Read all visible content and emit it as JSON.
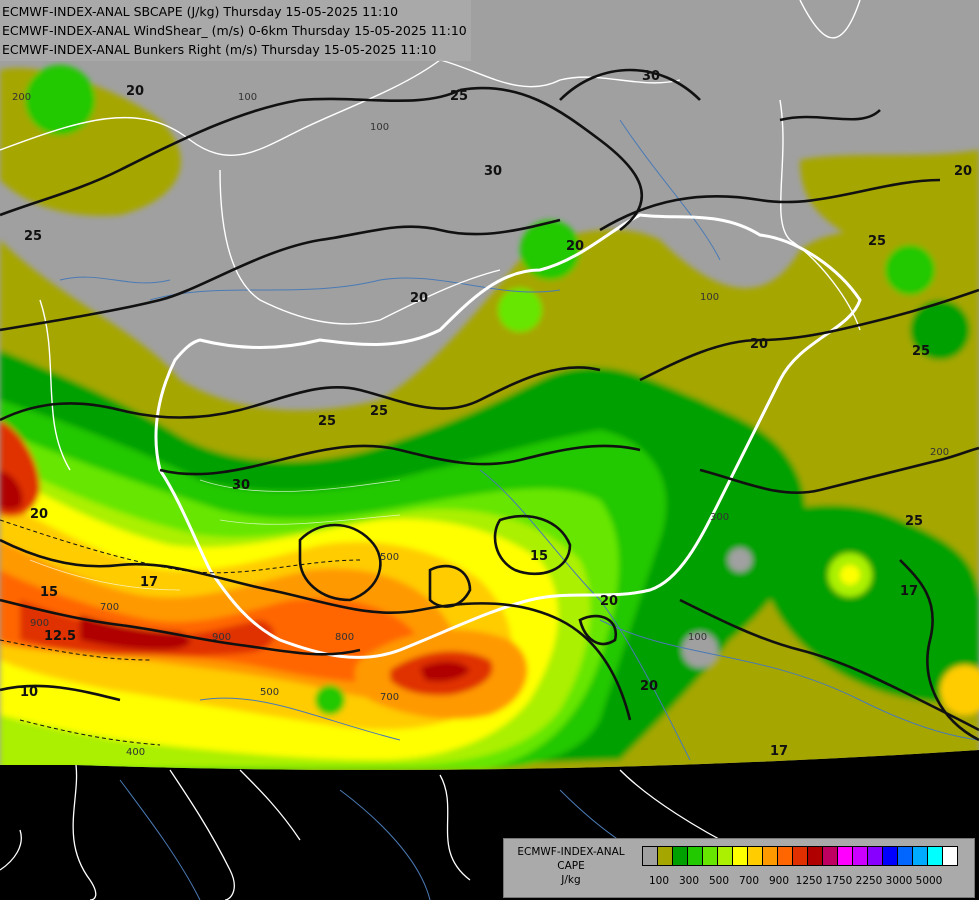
{
  "header": {
    "lines": [
      "ECMWF-INDEX-ANAL SBCAPE (J/kg) Thursday 15-05-2025 11:10",
      "ECMWF-INDEX-ANAL WindShear_ (m/s) 0-6km Thursday 15-05-2025 11:10",
      "ECMWF-INDEX-ANAL Bunkers Right (m/s) Thursday 15-05-2025 11:10"
    ]
  },
  "legend": {
    "title_lines": [
      "ECMWF-INDEX-ANAL",
      "CAPE",
      "J/kg"
    ],
    "swatch_colors": [
      "#a0a0a0",
      "#a6a600",
      "#00a000",
      "#22c800",
      "#66e600",
      "#aaf000",
      "#ffff00",
      "#ffcc00",
      "#ff9900",
      "#ff6600",
      "#e03000",
      "#b00000",
      "#c00060",
      "#ff00ff",
      "#cc00ff",
      "#8800ff",
      "#0000ff",
      "#0066ff",
      "#00aaff",
      "#00ffff",
      "#ffffff"
    ],
    "tick_labels": [
      "100",
      "300",
      "500",
      "700",
      "900",
      "1250",
      "1750",
      "2250",
      "3000",
      "5000"
    ]
  },
  "map": {
    "colors": {
      "background": "#000000",
      "no_cape": "#a0a0a0",
      "c100": "#a6a600",
      "c200": "#00a000",
      "c300": "#22c800",
      "c400": "#66e600",
      "c500": "#aaf000",
      "c600": "#ffff00",
      "c700": "#ffcc00",
      "c800": "#ff9900",
      "c900": "#ff6600",
      "c1000": "#e03000",
      "c1250": "#b00000",
      "borders": "#ffffff",
      "contours": "#111111",
      "rivers": "#4a7ab5"
    },
    "shear_contour_labels": [
      "20",
      "25",
      "30",
      "25",
      "20",
      "25",
      "20",
      "17",
      "15",
      "12.5",
      "10",
      "25",
      "30",
      "20",
      "25",
      "20",
      "17",
      "15",
      "20",
      "20",
      "25",
      "17",
      "20",
      "25",
      "30"
    ],
    "cape_labels": [
      "100",
      "200",
      "100",
      "300",
      "500",
      "700",
      "900",
      "700",
      "500",
      "400",
      "200",
      "100",
      "100",
      "900",
      "800"
    ]
  }
}
